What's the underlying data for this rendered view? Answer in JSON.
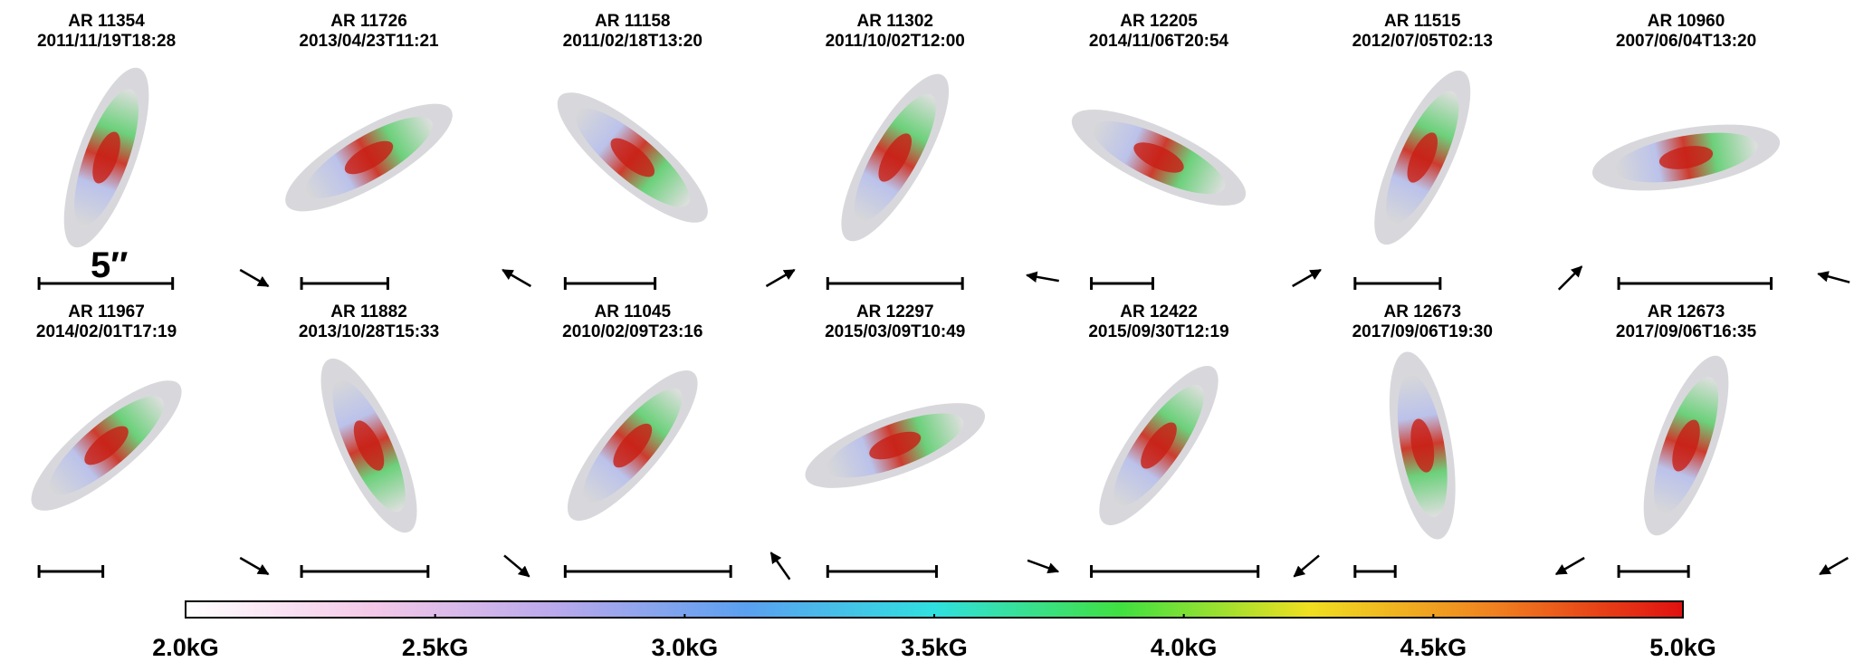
{
  "panels": [
    {
      "ar": "AR 11354",
      "date": "2011/11/19T18:28"
    },
    {
      "ar": "AR 11726",
      "date": "2013/04/23T11:21"
    },
    {
      "ar": "AR 11158",
      "date": "2011/02/18T13:20"
    },
    {
      "ar": "AR 11302",
      "date": "2011/10/02T12:00"
    },
    {
      "ar": "AR 12205",
      "date": "2014/11/06T20:54"
    },
    {
      "ar": "AR 11515",
      "date": "2012/07/05T02:13"
    },
    {
      "ar": "AR 10960",
      "date": "2007/06/04T13:20"
    },
    {
      "ar": "AR 11967",
      "date": "2014/02/01T17:19"
    },
    {
      "ar": "AR 11882",
      "date": "2013/10/28T15:33"
    },
    {
      "ar": "AR 11045",
      "date": "2010/02/09T23:16"
    },
    {
      "ar": "AR 12297",
      "date": "2015/03/09T10:49"
    },
    {
      "ar": "AR 12422",
      "date": "2015/09/30T12:19"
    },
    {
      "ar": "AR 12673",
      "date": "2017/09/06T19:30"
    },
    {
      "ar": "AR 12673",
      "date": "2017/09/06T16:35"
    }
  ],
  "scale_label": "5″",
  "colorbar": {
    "lim": [
      2.0,
      5.0
    ],
    "ticks": [
      {
        "value": 2.0,
        "label": "2.0kG"
      },
      {
        "value": 2.5,
        "label": "2.5kG"
      },
      {
        "value": 3.0,
        "label": "3.0kG"
      },
      {
        "value": 3.5,
        "label": "3.5kG"
      },
      {
        "value": 4.0,
        "label": "4.0kG"
      },
      {
        "value": 4.5,
        "label": "4.5kG"
      },
      {
        "value": 5.0,
        "label": "5.0kG"
      }
    ],
    "colors": [
      "#ffffff",
      "#f4c8e8",
      "#b8a8ec",
      "#5aa0f0",
      "#30e0e0",
      "#40e040",
      "#f0e020",
      "#f08020",
      "#e01010"
    ]
  }
}
